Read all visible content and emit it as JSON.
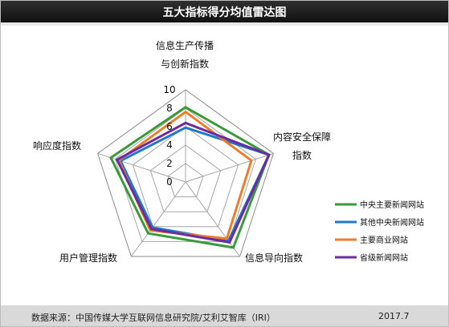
{
  "title": "五大指标得分均值雷达图",
  "footer": {
    "source": "数据来源：中国传媒大学互联网信息研究院/艾利艾智库（IRI）",
    "date": "2017.7"
  },
  "chart_data": {
    "type": "radar",
    "title": "五大指标得分均值雷达图",
    "axes": [
      [
        "信息生产传播",
        "与创新指数"
      ],
      [
        "内容安全保障",
        "指数"
      ],
      [
        "信息导向指数"
      ],
      [
        "用户管理指数"
      ],
      [
        "响应度指数"
      ]
    ],
    "range": [
      0,
      10
    ],
    "ticks": [
      "0",
      "2",
      "4",
      "6",
      "8",
      "10"
    ],
    "legend_position": "right",
    "series": [
      {
        "name": "中央主要新闻网站",
        "color": "#3a9a3a",
        "values": [
          8.1,
          9.5,
          8.8,
          6.9,
          8.5
        ]
      },
      {
        "name": "其他中央新闻网站",
        "color": "#1f78c8",
        "values": [
          5.9,
          9.5,
          7.9,
          6.1,
          7.4
        ]
      },
      {
        "name": "主要商业网站",
        "color": "#ee7d2a",
        "values": [
          7.6,
          7.5,
          7.6,
          6.5,
          7.6
        ]
      },
      {
        "name": "省级新闻网站",
        "color": "#6a2ca0",
        "values": [
          6.4,
          9.5,
          8.1,
          6.3,
          7.8
        ]
      }
    ]
  }
}
